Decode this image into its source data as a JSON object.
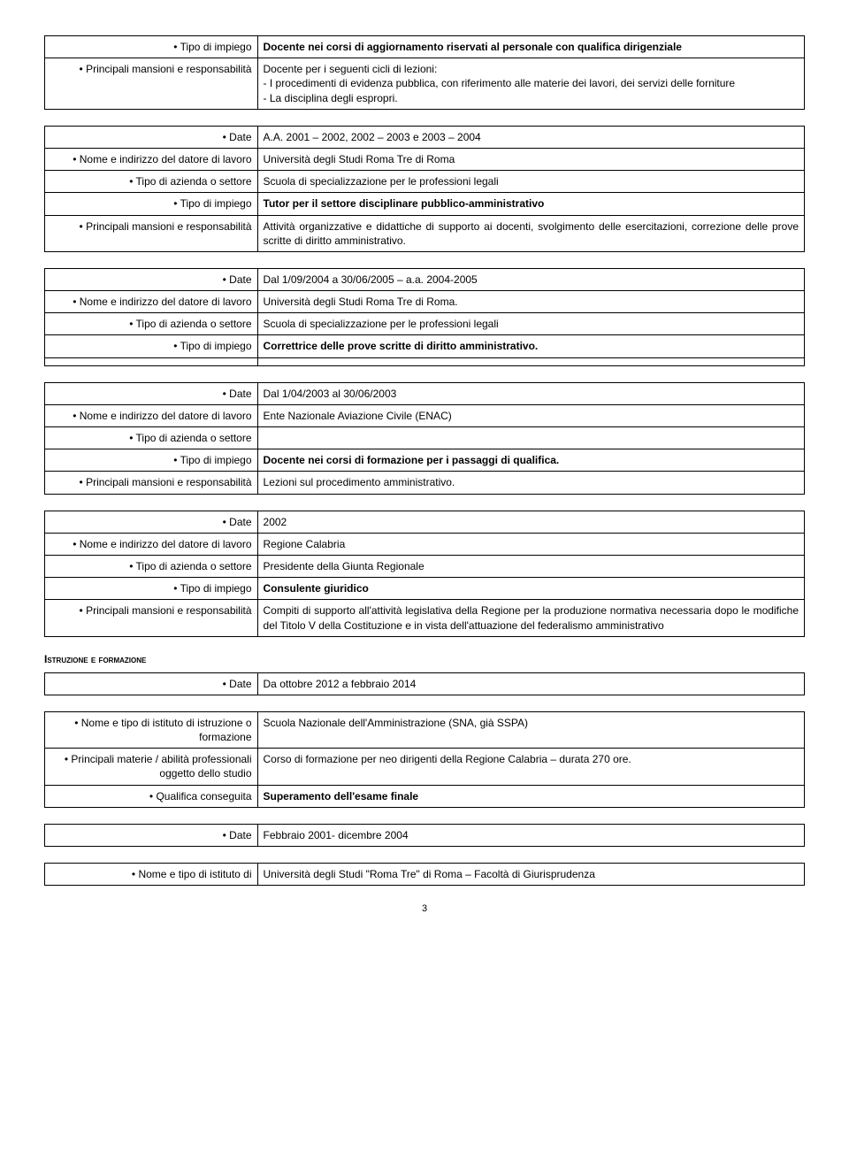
{
  "table1": {
    "rows": [
      {
        "label": "• Tipo di impiego",
        "value_html": "<span class='bold'>Docente nei corsi di aggiornamento riservati al personale con qualifica dirigenziale</span>"
      },
      {
        "label": "• Principali mansioni e responsabilità",
        "value_html": "Docente per i seguenti cicli di lezioni:<br>- I procedimenti di evidenza pubblica, con riferimento alle materie dei lavori, dei servizi delle forniture<br>- La disciplina degli espropri."
      }
    ]
  },
  "table2": {
    "rows": [
      {
        "label": "• Date",
        "value_html": "A.A. 2001 – 2002, 2002 – 2003 e 2003 – 2004"
      },
      {
        "label": "• Nome e indirizzo del datore di lavoro",
        "value_html": "Università degli Studi Roma Tre di Roma"
      },
      {
        "label": "• Tipo di azienda o settore",
        "value_html": "Scuola di specializzazione per le professioni legali"
      },
      {
        "label": "• Tipo di impiego",
        "value_html": "<span class='bold'>Tutor per il settore disciplinare pubblico-amministrativo</span>"
      },
      {
        "label": "• Principali mansioni e responsabilità",
        "value_html": "Attività organizzative e didattiche di supporto ai docenti, svolgimento delle esercitazioni, correzione delle prove scritte di diritto amministrativo."
      }
    ]
  },
  "table3": {
    "rows": [
      {
        "label": "• Date",
        "value_html": "Dal 1/09/2004 a 30/06/2005 – a.a. 2004-2005"
      },
      {
        "label": "• Nome e indirizzo del datore di lavoro",
        "value_html": "Università degli Studi Roma Tre di Roma."
      },
      {
        "label": "• Tipo di azienda o settore",
        "value_html": "Scuola di specializzazione per le professioni legali"
      },
      {
        "label": "• Tipo di impiego",
        "value_html": "<span class='bold'>Correttrice delle prove scritte di diritto amministrativo.</span>"
      },
      {
        "label": "",
        "value_html": ""
      }
    ]
  },
  "table4": {
    "rows": [
      {
        "label": "• Date",
        "value_html": "Dal 1/04/2003 al 30/06/2003"
      },
      {
        "label": "• Nome e indirizzo del datore di lavoro",
        "value_html": "Ente Nazionale Aviazione Civile (ENAC)"
      },
      {
        "label": "• Tipo di azienda o settore",
        "value_html": ""
      },
      {
        "label": "• Tipo di impiego",
        "value_html": "<span class='bold'>Docente nei corsi di formazione per i passaggi di qualifica.</span>"
      },
      {
        "label": "• Principali mansioni e responsabilità",
        "value_html": "Lezioni sul procedimento amministrativo."
      }
    ]
  },
  "table5": {
    "rows": [
      {
        "label": "• Date",
        "value_html": "2002"
      },
      {
        "label": "• Nome e indirizzo del datore di lavoro",
        "value_html": "Regione Calabria"
      },
      {
        "label": "• Tipo di azienda o settore",
        "value_html": "Presidente della Giunta Regionale"
      },
      {
        "label": "• Tipo di impiego",
        "value_html": "<span class='bold'>Consulente giuridico</span>"
      },
      {
        "label": "• Principali mansioni e responsabilità",
        "value_html": "Compiti di supporto all'attività legislativa della Regione per la produzione normativa necessaria dopo le modifiche del Titolo V della Costituzione e in vista dell'attuazione del federalismo amministrativo"
      }
    ]
  },
  "section_heading": "Istruzione e formazione",
  "table6": {
    "rows": [
      {
        "label": "• Date",
        "value_html": "Da ottobre 2012 a febbraio 2014"
      }
    ]
  },
  "table7": {
    "rows": [
      {
        "label": "• Nome e tipo di istituto di istruzione o formazione",
        "value_html": "Scuola Nazionale dell'Amministrazione (SNA, già SSPA)"
      },
      {
        "label": "• Principali materie / abilità professionali oggetto dello studio",
        "value_html": "Corso di formazione per neo dirigenti della Regione Calabria – durata 270 ore."
      },
      {
        "label": "• Qualifica conseguita",
        "value_html": "<span class='bold'>Superamento dell'esame finale</span>"
      }
    ]
  },
  "table8": {
    "rows": [
      {
        "label": "• Date",
        "value_html": "Febbraio 2001- dicembre 2004"
      }
    ]
  },
  "table9": {
    "rows": [
      {
        "label": "• Nome e tipo di istituto di",
        "value_html": "Università degli Studi \"Roma Tre\" di Roma – Facoltà di Giurisprudenza"
      }
    ]
  },
  "page_number": "3"
}
